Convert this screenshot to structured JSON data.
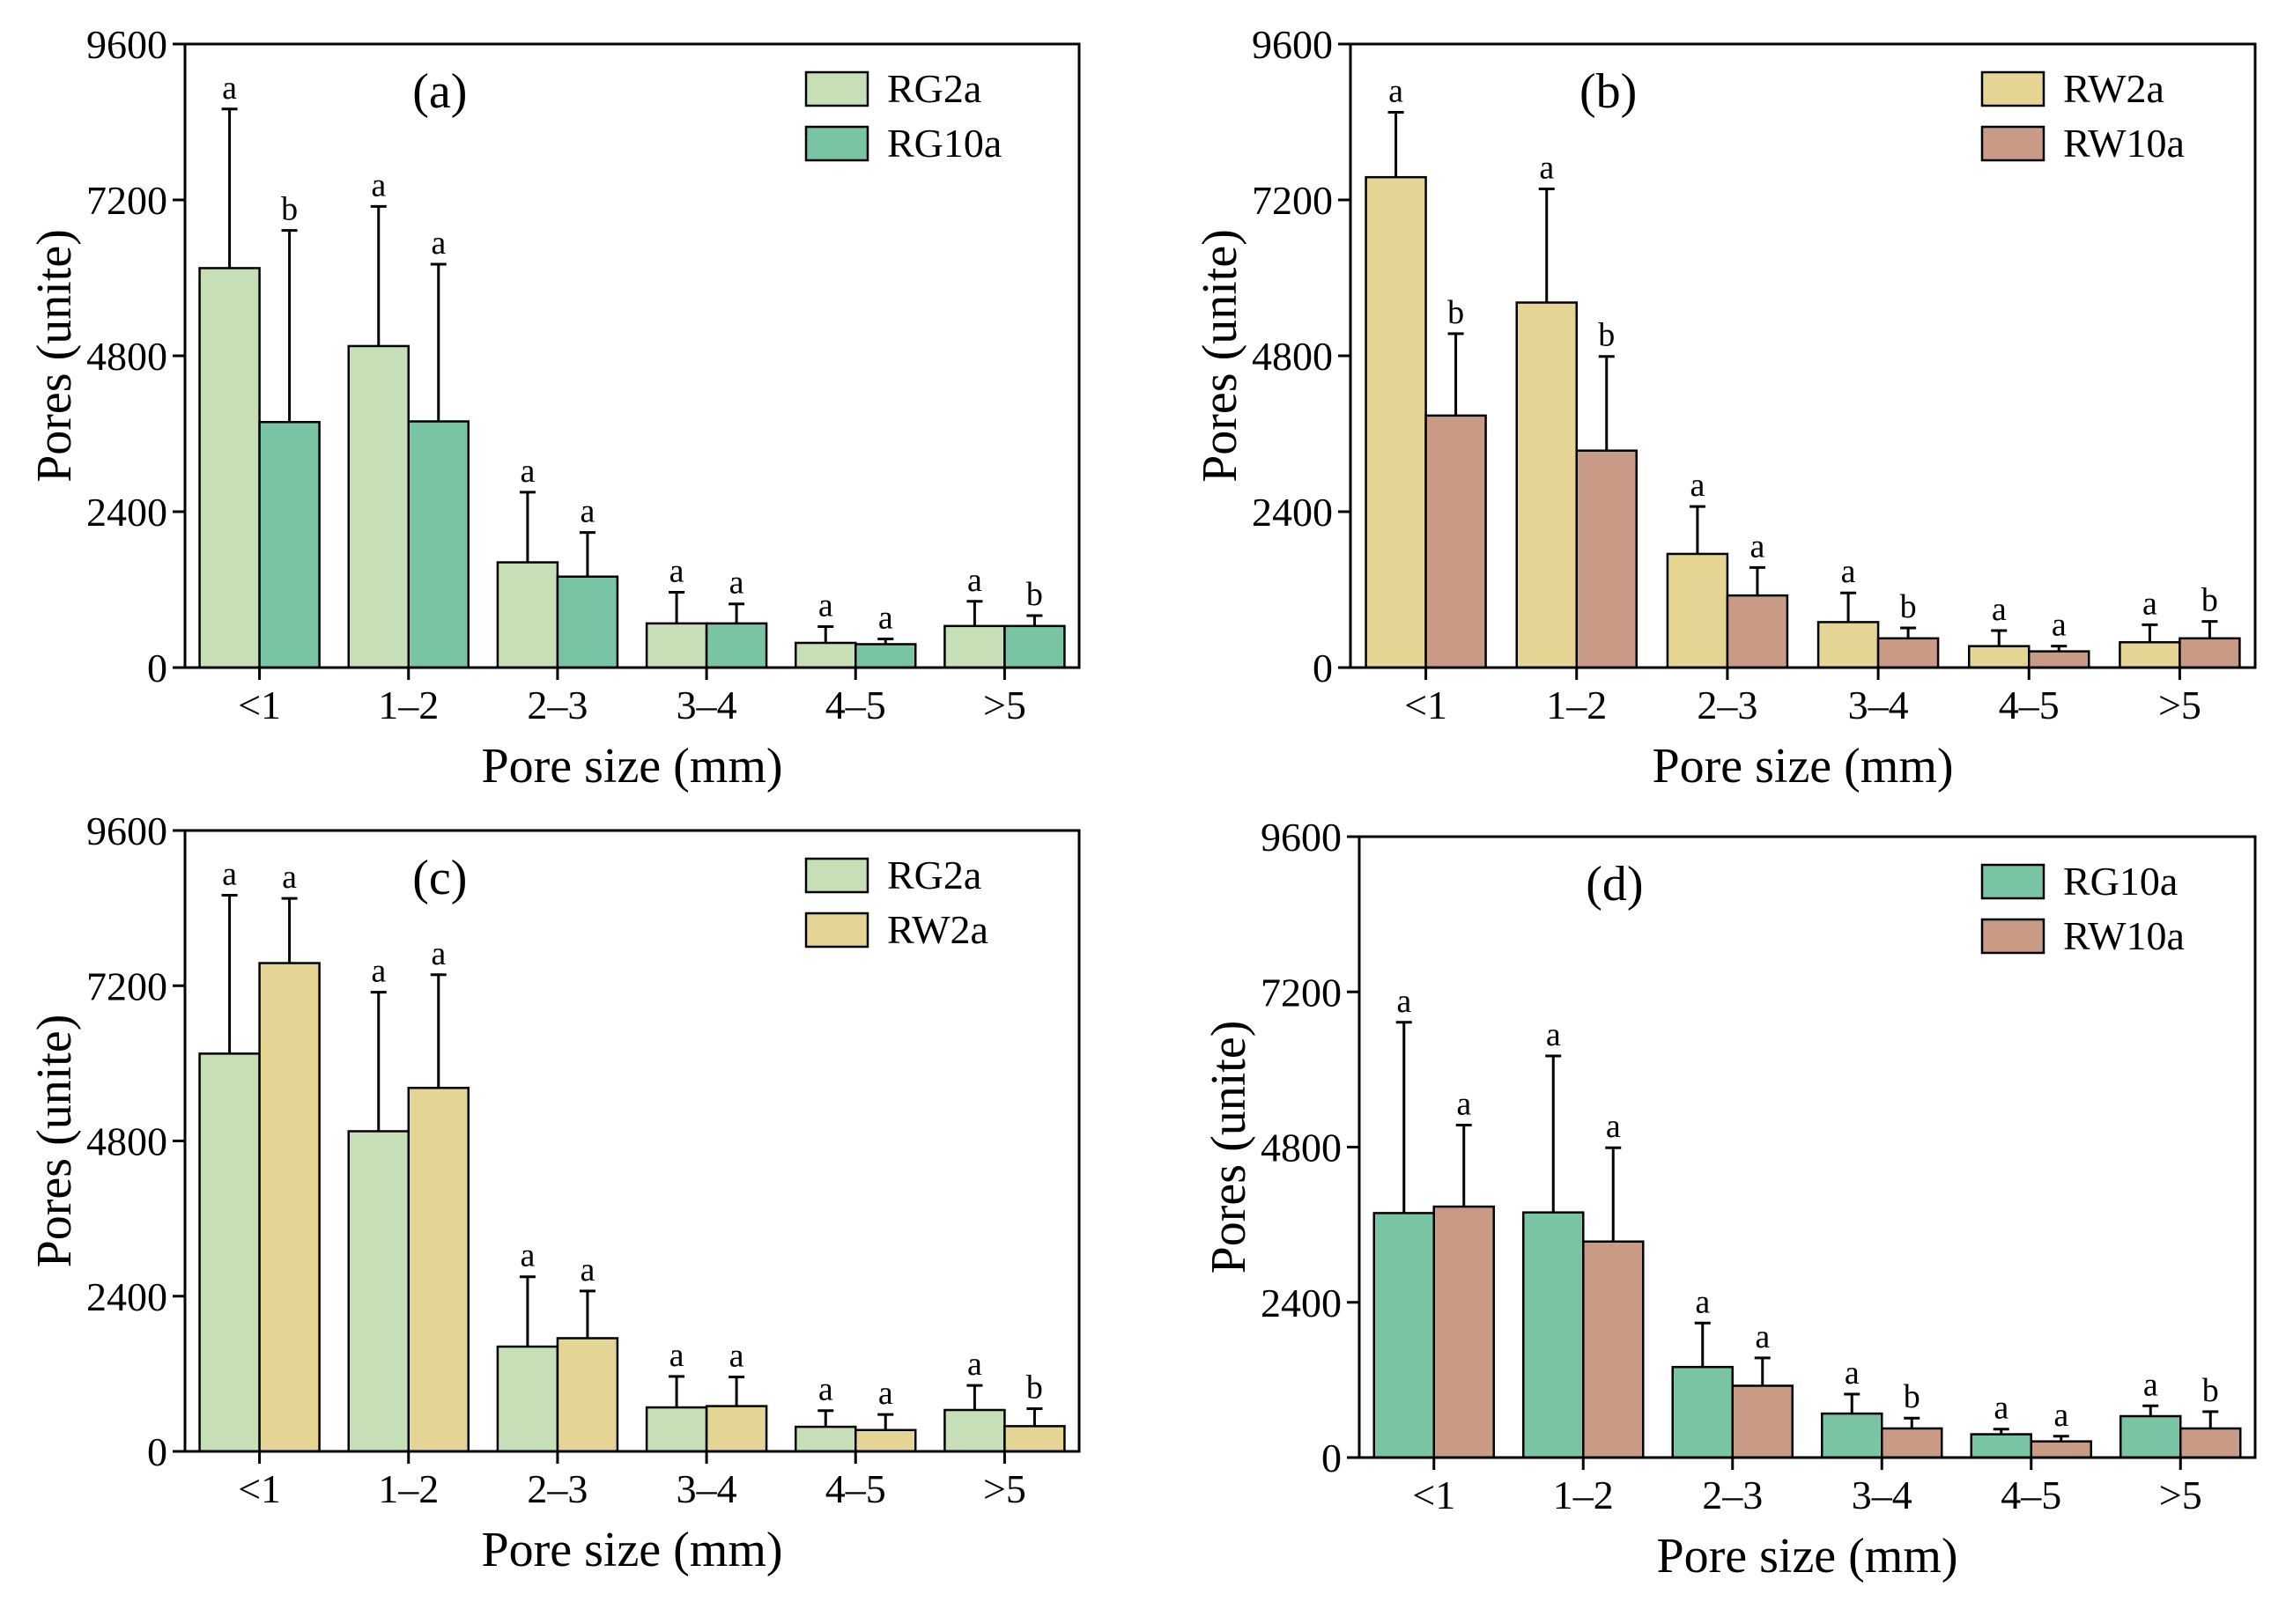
{
  "figure": {
    "y_axis_label": "Pores (unite)",
    "x_axis_label": "Pore size (mm)"
  },
  "colors": {
    "RG2a": "#c6dfb6",
    "RG10a": "#79c4a3",
    "RW2a": "#e4d595",
    "RW10a": "#c99a84"
  },
  "chart_data": [
    {
      "type": "bar",
      "panel_label": "(a)",
      "categories": [
        "<1",
        "1–2",
        "2–3",
        "3–4",
        "4–5",
        ">5"
      ],
      "xlabel": "Pore size (mm)",
      "ylabel": "Pores (unite)",
      "ylim": [
        0,
        9600
      ],
      "yticks": [
        "0",
        "2400",
        "4800",
        "7200",
        "9600"
      ],
      "legend_position": "top-right",
      "series": [
        {
          "name": "RG2a",
          "color_key": "RG2a",
          "values": [
            6150,
            4950,
            1620,
            680,
            380,
            640
          ],
          "errors": [
            2450,
            2150,
            1080,
            480,
            250,
            380
          ],
          "letters": [
            "a",
            "a",
            "a",
            "a",
            "a",
            "a"
          ]
        },
        {
          "name": "RG10a",
          "color_key": "RG10a",
          "values": [
            3780,
            3790,
            1400,
            680,
            360,
            640
          ],
          "errors": [
            2950,
            2420,
            680,
            300,
            80,
            160
          ],
          "letters": [
            "b",
            "a",
            "a",
            "a",
            "a",
            "b"
          ]
        }
      ]
    },
    {
      "type": "bar",
      "panel_label": "(b)",
      "categories": [
        "<1",
        "1–2",
        "2–3",
        "3–4",
        "4–5",
        ">5"
      ],
      "xlabel": "Pore size (mm)",
      "ylabel": "Pores (unite)",
      "ylim": [
        0,
        9600
      ],
      "yticks": [
        "0",
        "2400",
        "4800",
        "7200",
        "9600"
      ],
      "legend_position": "top-right",
      "series": [
        {
          "name": "RW2a",
          "color_key": "RW2a",
          "values": [
            7550,
            5620,
            1750,
            700,
            330,
            390
          ],
          "errors": [
            1000,
            1750,
            730,
            450,
            240,
            270
          ],
          "letters": [
            "a",
            "a",
            "a",
            "a",
            "a",
            "a"
          ]
        },
        {
          "name": "RW10a",
          "color_key": "RW10a",
          "values": [
            3880,
            3340,
            1110,
            450,
            250,
            450
          ],
          "errors": [
            1260,
            1450,
            430,
            160,
            80,
            260
          ],
          "letters": [
            "b",
            "b",
            "a",
            "b",
            "a",
            "b"
          ]
        }
      ]
    },
    {
      "type": "bar",
      "panel_label": "(c)",
      "categories": [
        "<1",
        "1–2",
        "2–3",
        "3–4",
        "4–5",
        ">5"
      ],
      "xlabel": "Pore size (mm)",
      "ylabel": "Pores (unite)",
      "ylim": [
        0,
        9600
      ],
      "yticks": [
        "0",
        "2400",
        "4800",
        "7200",
        "9600"
      ],
      "legend_position": "top-right",
      "series": [
        {
          "name": "RG2a",
          "color_key": "RG2a",
          "values": [
            6150,
            4950,
            1620,
            680,
            380,
            640
          ],
          "errors": [
            2450,
            2150,
            1080,
            480,
            250,
            380
          ],
          "letters": [
            "a",
            "a",
            "a",
            "a",
            "a",
            "a"
          ]
        },
        {
          "name": "RW2a",
          "color_key": "RW2a",
          "values": [
            7550,
            5620,
            1750,
            700,
            330,
            390
          ],
          "errors": [
            1000,
            1750,
            730,
            450,
            240,
            270
          ],
          "letters": [
            "a",
            "a",
            "a",
            "a",
            "a",
            "b"
          ]
        }
      ]
    },
    {
      "type": "bar",
      "panel_label": "(d)",
      "categories": [
        "<1",
        "1–2",
        "2–3",
        "3–4",
        "4–5",
        ">5"
      ],
      "xlabel": "Pore size (mm)",
      "ylabel": "Pores (unite)",
      "ylim": [
        0,
        9600
      ],
      "yticks": [
        "0",
        "2400",
        "4800",
        "7200",
        "9600"
      ],
      "legend_position": "top-right",
      "series": [
        {
          "name": "RG10a",
          "color_key": "RG10a",
          "values": [
            3780,
            3790,
            1400,
            680,
            360,
            640
          ],
          "errors": [
            2950,
            2420,
            680,
            300,
            80,
            160
          ],
          "letters": [
            "a",
            "a",
            "a",
            "a",
            "a",
            "a"
          ]
        },
        {
          "name": "RW10a",
          "color_key": "RW10a",
          "values": [
            3880,
            3340,
            1110,
            450,
            250,
            450
          ],
          "errors": [
            1260,
            1450,
            430,
            160,
            80,
            260
          ],
          "letters": [
            "a",
            "a",
            "a",
            "b",
            "a",
            "b"
          ]
        }
      ]
    }
  ]
}
